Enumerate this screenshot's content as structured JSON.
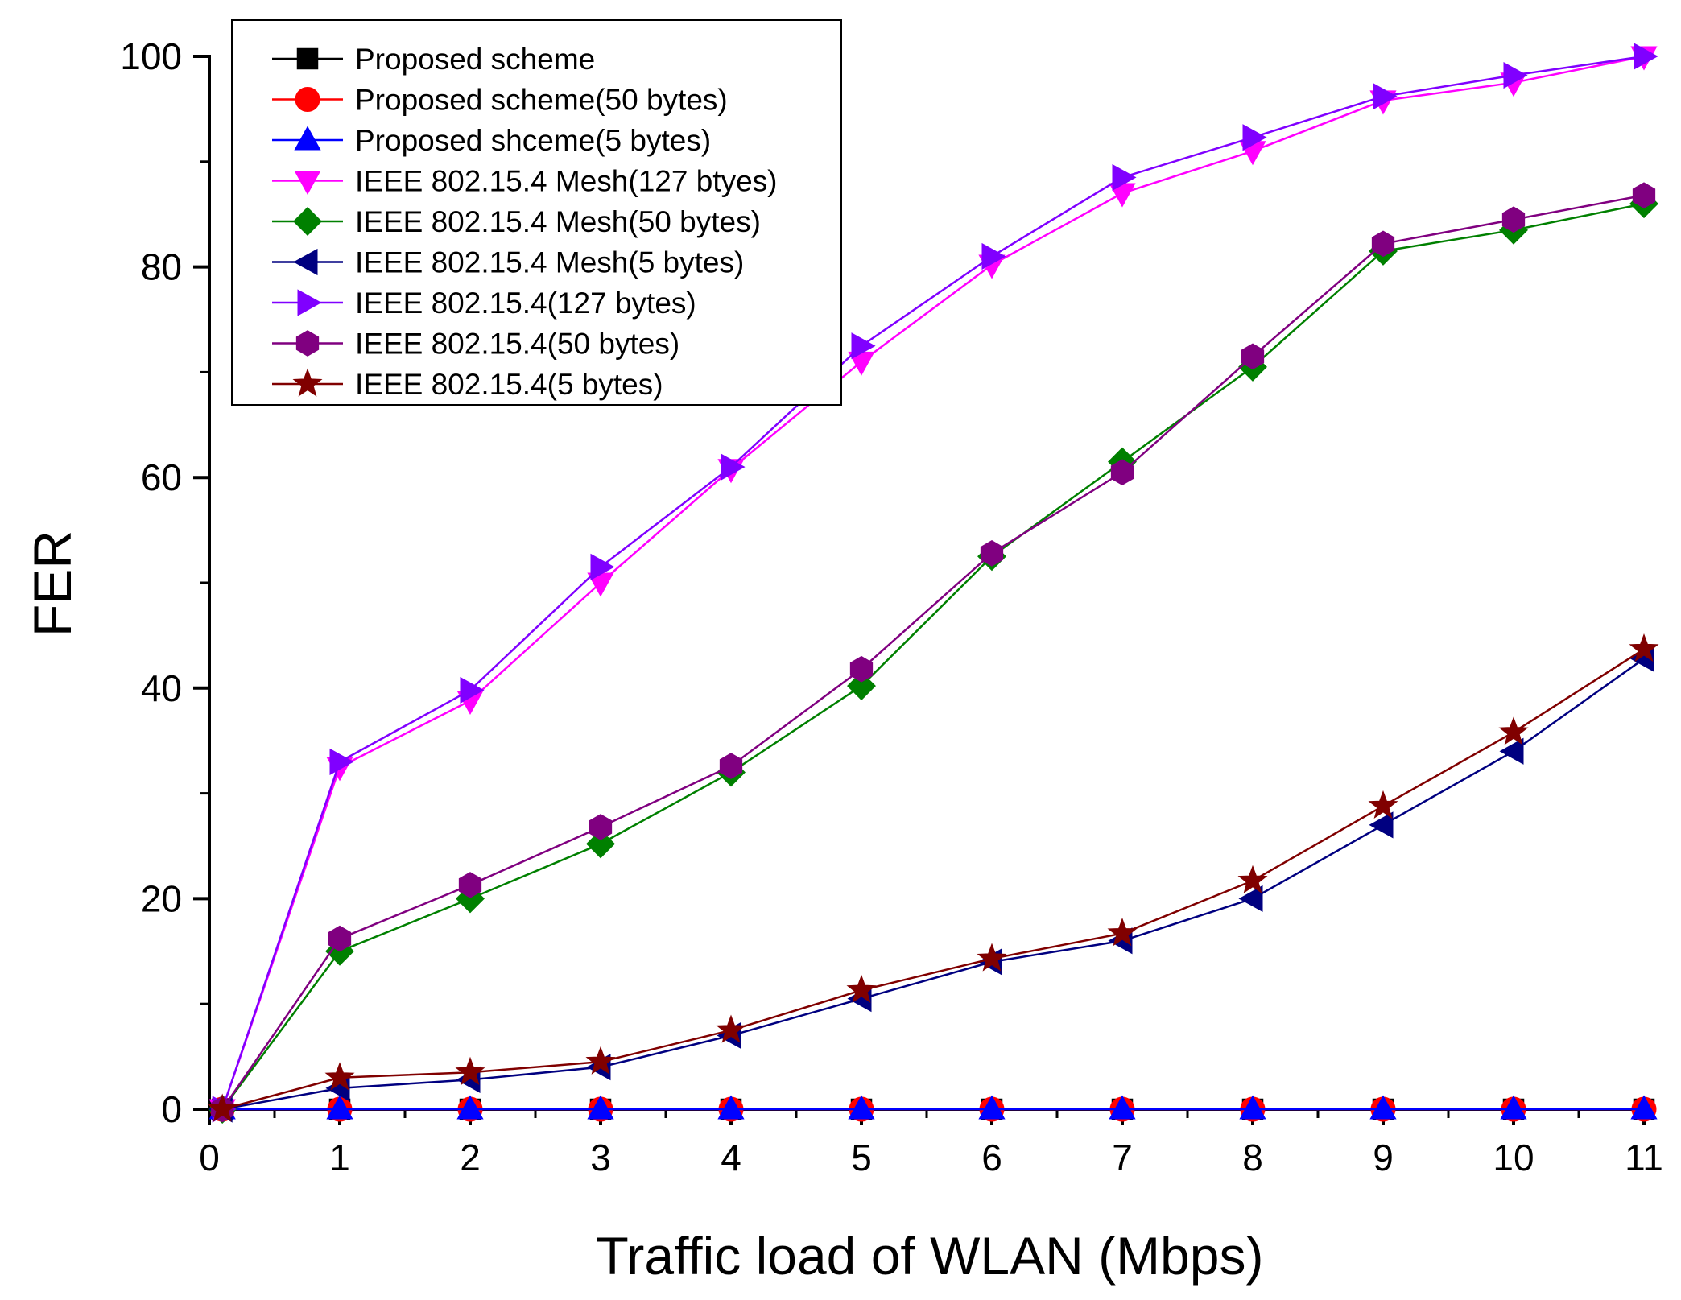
{
  "chart_data": {
    "type": "line",
    "title": "",
    "xlabel": "Traffic load of WLAN (Mbps)",
    "ylabel": "FER",
    "xlim": [
      0,
      11
    ],
    "ylim": [
      0,
      100
    ],
    "x_ticks": [
      "0",
      "1",
      "2",
      "3",
      "4",
      "5",
      "6",
      "7",
      "8",
      "9",
      "10",
      "11"
    ],
    "y_ticks": [
      "0",
      "20",
      "40",
      "60",
      "80",
      "100"
    ],
    "grid": false,
    "legend_position": "top-left",
    "x": [
      0.1,
      1,
      2,
      3,
      4,
      5,
      6,
      7,
      8,
      9,
      10,
      11
    ],
    "series": [
      {
        "name": "Proposed scheme",
        "color": "#000000",
        "marker": "square",
        "values": [
          0,
          0,
          0,
          0,
          0,
          0,
          0,
          0,
          0,
          0,
          0,
          0
        ]
      },
      {
        "name": "Proposed scheme(50 bytes)",
        "color": "#ff0000",
        "marker": "circle",
        "values": [
          0,
          0,
          0,
          0,
          0,
          0,
          0,
          0,
          0,
          0,
          0,
          0
        ]
      },
      {
        "name": "Proposed shceme(5 bytes)",
        "color": "#0000ff",
        "marker": "triangle-up",
        "values": [
          0,
          0,
          0,
          0,
          0,
          0,
          0,
          0,
          0,
          0,
          0,
          0
        ]
      },
      {
        "name": "IEEE 802.15.4 Mesh(127 btyes)",
        "color": "#ff00ff",
        "marker": "triangle-down",
        "values": [
          0,
          32.5,
          38.8,
          50,
          60.8,
          71,
          80.2,
          87,
          91,
          95.8,
          97.5,
          100
        ]
      },
      {
        "name": "IEEE 802.15.4 Mesh(50 bytes)",
        "color": "#008000",
        "marker": "diamond",
        "values": [
          0,
          15,
          20,
          25.2,
          32,
          40.2,
          52.5,
          61.5,
          70.5,
          81.5,
          83.5,
          86
        ]
      },
      {
        "name": "IEEE 802.15.4 Mesh(5 bytes)",
        "color": "#000080",
        "marker": "triangle-left",
        "values": [
          0,
          2,
          2.8,
          4,
          7,
          10.5,
          14,
          16,
          20,
          27,
          34,
          42.8
        ]
      },
      {
        "name": "IEEE 802.15.4(127 bytes)",
        "color": "#8000ff",
        "marker": "triangle-right",
        "values": [
          0,
          33,
          39.8,
          51.5,
          61,
          72.5,
          81,
          88.5,
          92.3,
          96.2,
          98.2,
          100
        ]
      },
      {
        "name": "IEEE 802.15.4(50 bytes)",
        "color": "#800080",
        "marker": "hexagon",
        "values": [
          0,
          16.2,
          21.3,
          26.8,
          32.6,
          41.8,
          52.8,
          60.5,
          71.5,
          82.2,
          84.5,
          86.8
        ]
      },
      {
        "name": "IEEE 802.15.4(5 bytes)",
        "color": "#800000",
        "marker": "star",
        "values": [
          0,
          3,
          3.5,
          4.5,
          7.5,
          11.3,
          14.3,
          16.7,
          21.7,
          28.8,
          35.8,
          43.7
        ]
      }
    ]
  }
}
